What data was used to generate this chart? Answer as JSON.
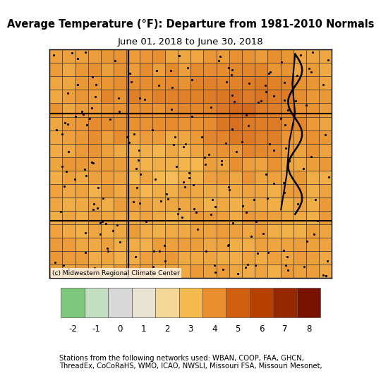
{
  "title_line1": "Average Temperature (°F): Departure from 1981-2010 Normals",
  "title_line2": "June 01, 2018 to June 30, 2018",
  "colorbar_values": [
    -2,
    -1,
    0,
    1,
    2,
    3,
    4,
    5,
    6,
    7,
    8
  ],
  "colorbar_colors": [
    "#7ec87e",
    "#c2dfc2",
    "#d8d8d8",
    "#e8e4d4",
    "#f5d898",
    "#f5ba50",
    "#e89030",
    "#d06010",
    "#b84000",
    "#962800",
    "#781200"
  ],
  "dot_color": "#000000",
  "copyright_text": "(c) Midwestern Regional Climate Center",
  "footnote_text": "Stations from the following networks used: WBAN, COOP, FAA, GHCN,\nThreadEx, CoCoRaHS, WMO, ICAO, NWSLI, Missouri FSA, Missouri Mesonet,",
  "bg_color": "#ffffff",
  "map_border_color": "#000000",
  "fig_width": 4.0,
  "fig_height": 5.23,
  "colorbar_label_fontsize": 8.5,
  "title_fontsize1": 10.5,
  "title_fontsize2": 9.5,
  "footnote_fontsize": 7.2,
  "copyright_fontsize": 6.5,
  "n_county_cols": 22,
  "n_county_rows": 17
}
